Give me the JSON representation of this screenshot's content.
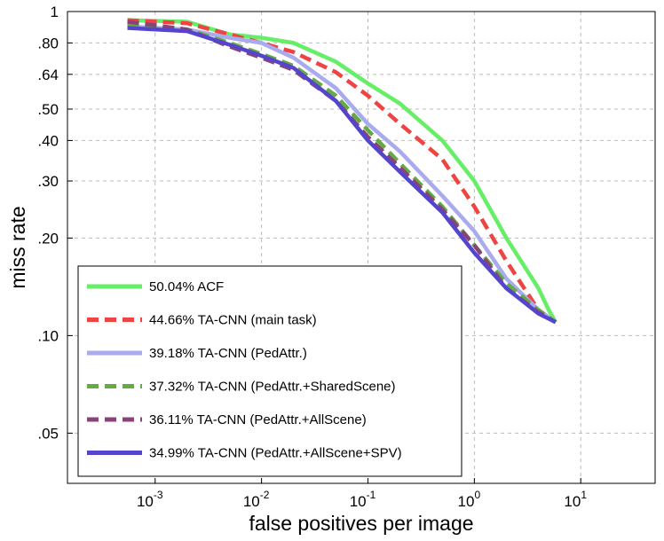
{
  "chart_data": {
    "type": "line",
    "xscale": "log",
    "yscale": "log",
    "xlabel": "false positives per image",
    "ylabel": "miss rate",
    "xlim": [
      0.00015,
      50
    ],
    "ylim": [
      0.035,
      1
    ],
    "grid": true,
    "legend_position": "bottom-left",
    "xticks": [
      {
        "value": 0.001,
        "base": "10",
        "exp": "-3"
      },
      {
        "value": 0.01,
        "base": "10",
        "exp": "-2"
      },
      {
        "value": 0.1,
        "base": "10",
        "exp": "-1"
      },
      {
        "value": 1,
        "base": "10",
        "exp": "0"
      },
      {
        "value": 10,
        "base": "10",
        "exp": "1"
      }
    ],
    "yticks": [
      {
        "value": 1,
        "label": "1"
      },
      {
        "value": 0.8,
        "label": ".80"
      },
      {
        "value": 0.64,
        "label": ".64"
      },
      {
        "value": 0.5,
        "label": ".50"
      },
      {
        "value": 0.4,
        "label": ".40"
      },
      {
        "value": 0.3,
        "label": ".30"
      },
      {
        "value": 0.2,
        "label": ".20"
      },
      {
        "value": 0.1,
        "label": ".10"
      },
      {
        "value": 0.05,
        "label": ".05"
      }
    ],
    "series": [
      {
        "name": "50.04% ACF",
        "color": "#66ee66",
        "dash": "solid",
        "points": [
          [
            0.00055,
            0.94
          ],
          [
            0.002,
            0.93
          ],
          [
            0.005,
            0.85
          ],
          [
            0.01,
            0.83
          ],
          [
            0.02,
            0.8
          ],
          [
            0.05,
            0.7
          ],
          [
            0.1,
            0.6
          ],
          [
            0.2,
            0.52
          ],
          [
            0.5,
            0.4
          ],
          [
            1,
            0.3
          ],
          [
            2,
            0.2
          ],
          [
            4,
            0.14
          ],
          [
            5,
            0.12
          ],
          [
            5.8,
            0.11
          ]
        ]
      },
      {
        "name": "44.66% TA-CNN (main task)",
        "color": "#ee4444",
        "dash": "dashed",
        "points": [
          [
            0.00055,
            0.94
          ],
          [
            0.002,
            0.92
          ],
          [
            0.005,
            0.85
          ],
          [
            0.01,
            0.8
          ],
          [
            0.02,
            0.75
          ],
          [
            0.05,
            0.65
          ],
          [
            0.1,
            0.55
          ],
          [
            0.2,
            0.45
          ],
          [
            0.5,
            0.35
          ],
          [
            1,
            0.25
          ],
          [
            2,
            0.17
          ],
          [
            4,
            0.12
          ],
          [
            5.8,
            0.11
          ]
        ]
      },
      {
        "name": "39.18% TA-CNN (PedAttr.)",
        "color": "#aaaaee",
        "dash": "solid",
        "points": [
          [
            0.00055,
            0.9
          ],
          [
            0.002,
            0.88
          ],
          [
            0.005,
            0.83
          ],
          [
            0.01,
            0.8
          ],
          [
            0.02,
            0.72
          ],
          [
            0.05,
            0.58
          ],
          [
            0.1,
            0.45
          ],
          [
            0.2,
            0.37
          ],
          [
            0.5,
            0.27
          ],
          [
            1,
            0.21
          ],
          [
            2,
            0.15
          ],
          [
            4,
            0.12
          ],
          [
            5.8,
            0.11
          ]
        ]
      },
      {
        "name": "37.32% TA-CNN (PedAttr.+SharedScene)",
        "color": "#66aa44",
        "dash": "dashed",
        "points": [
          [
            0.00055,
            0.91
          ],
          [
            0.002,
            0.88
          ],
          [
            0.005,
            0.8
          ],
          [
            0.01,
            0.74
          ],
          [
            0.02,
            0.68
          ],
          [
            0.05,
            0.55
          ],
          [
            0.1,
            0.43
          ],
          [
            0.2,
            0.34
          ],
          [
            0.5,
            0.25
          ],
          [
            1,
            0.19
          ],
          [
            2,
            0.145
          ],
          [
            4,
            0.12
          ],
          [
            5.8,
            0.11
          ]
        ]
      },
      {
        "name": "36.11% TA-CNN (PedAttr.+AllScene)",
        "color": "#884477",
        "dash": "dashed",
        "points": [
          [
            0.00055,
            0.93
          ],
          [
            0.002,
            0.88
          ],
          [
            0.005,
            0.78
          ],
          [
            0.01,
            0.72
          ],
          [
            0.02,
            0.66
          ],
          [
            0.05,
            0.53
          ],
          [
            0.1,
            0.41
          ],
          [
            0.2,
            0.33
          ],
          [
            0.5,
            0.245
          ],
          [
            1,
            0.19
          ],
          [
            2,
            0.14
          ],
          [
            4,
            0.118
          ],
          [
            5.8,
            0.11
          ]
        ]
      },
      {
        "name": "34.99% TA-CNN (PedAttr.+AllScene+SPV)",
        "color": "#5544cc",
        "dash": "solid",
        "points": [
          [
            0.00055,
            0.89
          ],
          [
            0.002,
            0.87
          ],
          [
            0.005,
            0.79
          ],
          [
            0.01,
            0.73
          ],
          [
            0.02,
            0.67
          ],
          [
            0.05,
            0.53
          ],
          [
            0.1,
            0.4
          ],
          [
            0.2,
            0.32
          ],
          [
            0.5,
            0.24
          ],
          [
            1,
            0.18
          ],
          [
            2,
            0.14
          ],
          [
            4,
            0.117
          ],
          [
            5.8,
            0.11
          ]
        ]
      }
    ]
  }
}
